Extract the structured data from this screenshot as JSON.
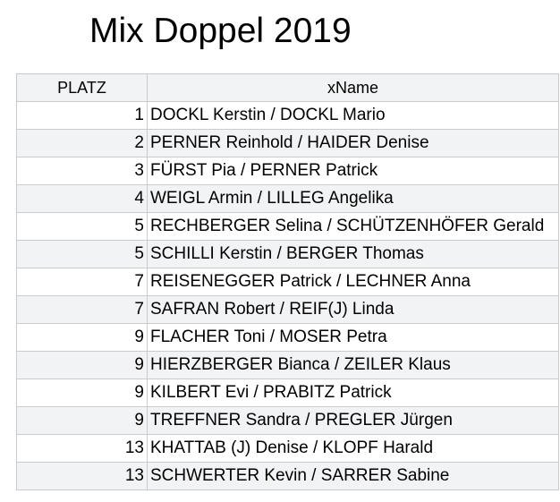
{
  "title": "Mix Doppel 2019",
  "table": {
    "headers": {
      "platz": "PLATZ",
      "name": "xName"
    },
    "rows": [
      {
        "platz": "1",
        "name": "DOCKL Kerstin / DOCKL Mario"
      },
      {
        "platz": "2",
        "name": "PERNER Reinhold / HAIDER Denise"
      },
      {
        "platz": "3",
        "name": "FÜRST Pia / PERNER Patrick"
      },
      {
        "platz": "4",
        "name": "WEIGL Armin / LILLEG Angelika"
      },
      {
        "platz": "5",
        "name": "RECHBERGER Selina / SCHÜTZENHÖFER Gerald"
      },
      {
        "platz": "5",
        "name": "SCHILLI Kerstin / BERGER Thomas"
      },
      {
        "platz": "7",
        "name": "REISENEGGER Patrick / LECHNER Anna"
      },
      {
        "platz": "7",
        "name": "SAFRAN Robert / REIF(J) Linda"
      },
      {
        "platz": "9",
        "name": "FLACHER Toni / MOSER Petra"
      },
      {
        "platz": "9",
        "name": "HIERZBERGER Bianca / ZEILER Klaus"
      },
      {
        "platz": "9",
        "name": "KILBERT Evi / PRABITZ Patrick"
      },
      {
        "platz": "9",
        "name": "TREFFNER Sandra / PREGLER Jürgen"
      },
      {
        "platz": "13",
        "name": "KHATTAB (J) Denise / KLOPF Harald"
      },
      {
        "platz": "13",
        "name": "SCHWERTER Kevin / SARRER Sabine"
      }
    ]
  }
}
